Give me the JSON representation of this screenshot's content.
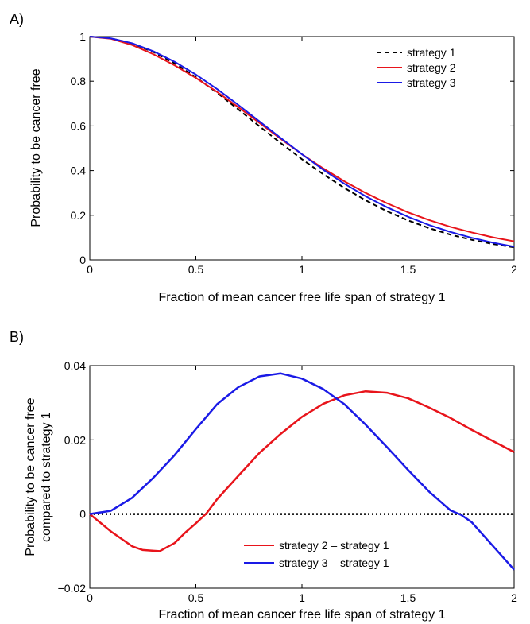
{
  "chart_data": [
    {
      "panel_label": "A)",
      "type": "line",
      "xlabel": "Fraction of mean cancer free life span of strategy 1",
      "ylabel": "Probability to be cancer free",
      "xlim": [
        0,
        2
      ],
      "ylim": [
        0,
        1
      ],
      "xticks": [
        0,
        0.5,
        1,
        1.5,
        2
      ],
      "xtick_labels": [
        "0",
        "0.5",
        "1",
        "1.5",
        "2"
      ],
      "yticks": [
        0,
        0.2,
        0.4,
        0.6,
        0.8,
        1
      ],
      "ytick_labels": [
        "0",
        "0.2",
        "0.4",
        "0.6",
        "0.8",
        "1"
      ],
      "legend_position": "top-right",
      "series": [
        {
          "name": "strategy 1",
          "color": "#000000",
          "dash": "dashed",
          "x": [
            0,
            0.1,
            0.2,
            0.3,
            0.4,
            0.5,
            0.6,
            0.7,
            0.8,
            0.9,
            1.0,
            1.1,
            1.2,
            1.3,
            1.4,
            1.5,
            1.6,
            1.7,
            1.8,
            1.9,
            2.0
          ],
          "y": [
            1.0,
            0.992,
            0.969,
            0.931,
            0.88,
            0.818,
            0.748,
            0.674,
            0.598,
            0.523,
            0.451,
            0.384,
            0.322,
            0.267,
            0.218,
            0.177,
            0.142,
            0.113,
            0.09,
            0.071,
            0.056
          ]
        },
        {
          "name": "strategy 2",
          "color": "#e8141b",
          "dash": "solid",
          "x": [
            0,
            0.1,
            0.2,
            0.3,
            0.4,
            0.5,
            0.6,
            0.7,
            0.8,
            0.9,
            1.0,
            1.1,
            1.2,
            1.3,
            1.4,
            1.5,
            1.6,
            1.7,
            1.8,
            1.9,
            2.0
          ],
          "y": [
            1.0,
            0.99,
            0.962,
            0.921,
            0.871,
            0.815,
            0.752,
            0.684,
            0.613,
            0.542,
            0.473,
            0.41,
            0.352,
            0.3,
            0.254,
            0.213,
            0.178,
            0.148,
            0.123,
            0.101,
            0.083
          ]
        },
        {
          "name": "strategy 3",
          "color": "#1a1ae6",
          "dash": "solid",
          "x": [
            0,
            0.1,
            0.2,
            0.3,
            0.4,
            0.5,
            0.6,
            0.7,
            0.8,
            0.9,
            1.0,
            1.1,
            1.2,
            1.3,
            1.4,
            1.5,
            1.6,
            1.7,
            1.8,
            1.9,
            2.0
          ],
          "y": [
            1.0,
            0.992,
            0.97,
            0.934,
            0.887,
            0.83,
            0.765,
            0.694,
            0.62,
            0.546,
            0.473,
            0.404,
            0.341,
            0.285,
            0.236,
            0.193,
            0.156,
            0.125,
            0.099,
            0.077,
            0.059
          ]
        }
      ]
    },
    {
      "panel_label": "B)",
      "type": "line",
      "xlabel": "Fraction of mean cancer free life span of strategy 1",
      "ylabel_lines": [
        "Probability to be cancer free",
        "compared to strategy 1"
      ],
      "xlim": [
        0,
        2
      ],
      "ylim": [
        -0.02,
        0.04
      ],
      "xticks": [
        0,
        0.5,
        1,
        1.5,
        2
      ],
      "xtick_labels": [
        "0",
        "0.5",
        "1",
        "1.5",
        "2"
      ],
      "yticks": [
        -0.02,
        0,
        0.02,
        0.04
      ],
      "ytick_labels": [
        "−0.02",
        "0",
        "0.02",
        "0.04"
      ],
      "legend_position": "bottom-center",
      "reference_line": {
        "y": 0,
        "color": "#000000",
        "dash": "dotted"
      },
      "series": [
        {
          "name": "strategy 2 – strategy 1",
          "color": "#e8141b",
          "dash": "solid",
          "x": [
            0,
            0.1,
            0.2,
            0.25,
            0.3,
            0.33,
            0.4,
            0.45,
            0.5,
            0.55,
            0.6,
            0.7,
            0.8,
            0.9,
            1.0,
            1.1,
            1.2,
            1.3,
            1.4,
            1.5,
            1.6,
            1.7,
            1.8,
            1.9,
            2.0
          ],
          "y": [
            0,
            -0.0047,
            -0.0087,
            -0.0097,
            -0.0099,
            -0.01,
            -0.0078,
            -0.005,
            -0.0025,
            0.0002,
            0.004,
            0.0103,
            0.0165,
            0.0216,
            0.0262,
            0.0297,
            0.032,
            0.0331,
            0.0327,
            0.0312,
            0.0287,
            0.0259,
            0.0227,
            0.0197,
            0.0167
          ]
        },
        {
          "name": "strategy 3 – strategy 1",
          "color": "#1a1ae6",
          "dash": "solid",
          "x": [
            0,
            0.1,
            0.2,
            0.3,
            0.4,
            0.5,
            0.6,
            0.7,
            0.8,
            0.9,
            1.0,
            1.1,
            1.2,
            1.3,
            1.4,
            1.5,
            1.6,
            1.7,
            1.75,
            1.8,
            1.9,
            2.0
          ],
          "y": [
            0,
            0.0009,
            0.0044,
            0.0098,
            0.0159,
            0.0229,
            0.0296,
            0.0342,
            0.0371,
            0.0379,
            0.0365,
            0.0337,
            0.0296,
            0.0241,
            0.0181,
            0.0119,
            0.006,
            0.001,
            -0.0002,
            -0.0022,
            -0.0086,
            -0.015
          ]
        }
      ]
    }
  ]
}
